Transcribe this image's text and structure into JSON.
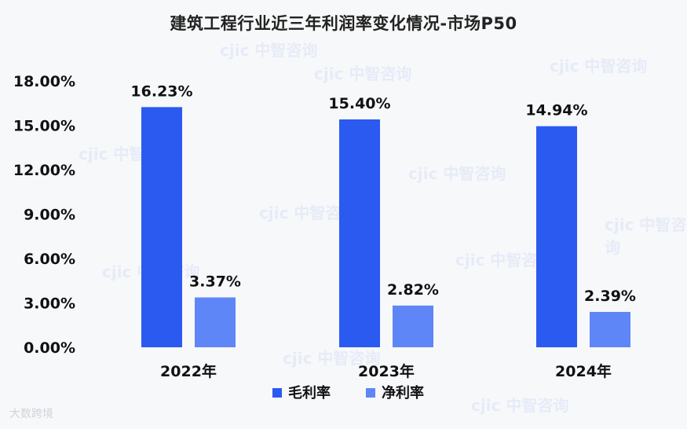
{
  "colors": {
    "gross": "#2b5af1",
    "net": "#5f86f7",
    "background": "#f7f8fa"
  },
  "footer_mark": "大数跨境",
  "watermark_text": "cjic 中智咨询",
  "chart_data": {
    "type": "bar",
    "title": "建筑工程行业近三年利润率变化情况-市场P50",
    "categories": [
      "2022年",
      "2023年",
      "2024年"
    ],
    "series": [
      {
        "name": "毛利率",
        "values": [
          16.23,
          15.4,
          14.94
        ],
        "labels": [
          "16.23%",
          "15.40%",
          "14.94%"
        ],
        "color": "#2b5af1"
      },
      {
        "name": "净利率",
        "values": [
          3.37,
          2.82,
          2.39
        ],
        "labels": [
          "3.37%",
          "2.82%",
          "2.39%"
        ],
        "color": "#5f86f7"
      }
    ],
    "ylim": [
      0,
      18
    ],
    "yticks": [
      0,
      3,
      6,
      9,
      12,
      15,
      18
    ],
    "ytick_labels": [
      "0.00%",
      "3.00%",
      "6.00%",
      "9.00%",
      "12.00%",
      "15.00%",
      "18.00%"
    ],
    "xlabel": "",
    "ylabel": "",
    "grid": false,
    "legend_position": "bottom"
  }
}
